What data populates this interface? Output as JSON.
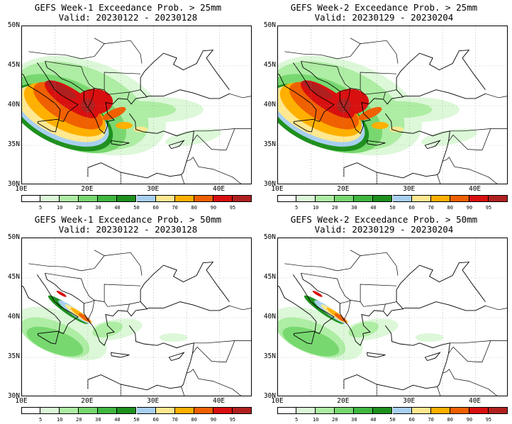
{
  "panels": [
    {
      "title_line1": "GEFS Week-1 Exceedance Prob. > 25mm",
      "title_line2": "Valid: 20230122 - 20230128",
      "threshold_mm": 25,
      "intensity": "high"
    },
    {
      "title_line1": "GEFS Week-2 Exceedance Prob. > 25mm",
      "title_line2": "Valid: 20230129 - 20230204",
      "threshold_mm": 25,
      "intensity": "high"
    },
    {
      "title_line1": "GEFS Week-1 Exceedance Prob. > 50mm",
      "title_line2": "Valid: 20230122 - 20230128",
      "threshold_mm": 50,
      "intensity": "low"
    },
    {
      "title_line1": "GEFS Week-2 Exceedance Prob. > 50mm",
      "title_line2": "Valid: 20230129 - 20230204",
      "threshold_mm": 50,
      "intensity": "low"
    }
  ],
  "lat_labels": [
    "50N",
    "45N",
    "40N",
    "35N",
    "30N"
  ],
  "lon_labels": [
    "10E",
    "20E",
    "30E",
    "40E"
  ],
  "colorbar": {
    "labels": [
      "5",
      "10",
      "20",
      "30",
      "40",
      "50",
      "60",
      "70",
      "80",
      "90",
      "95"
    ],
    "colors": [
      "#ffffff",
      "#dcf8d8",
      "#aeeda4",
      "#78d870",
      "#40b840",
      "#1e901e",
      "#a8d0f0",
      "#ffe890",
      "#ffb000",
      "#f06000",
      "#d81010",
      "#b02020"
    ]
  }
}
